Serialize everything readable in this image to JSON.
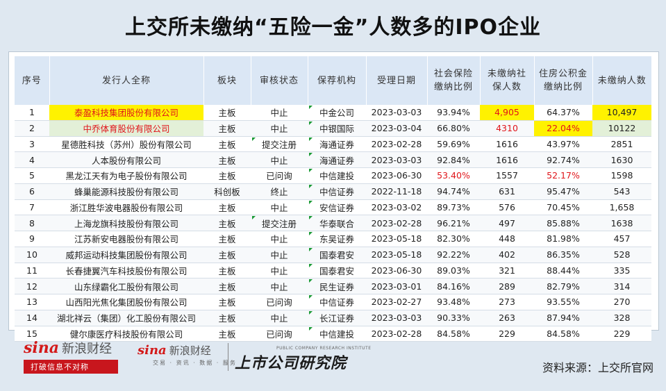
{
  "title": "上交所未缴纳“五险一金”人数多的IPO企业",
  "chart_data": {
    "type": "table",
    "columns": [
      "序号",
      "发行人全称",
      "板块",
      "审核状态",
      "保荐机构",
      "受理日期",
      "社会保险\n缴纳比例",
      "未缴纳社\n保人数",
      "住房公积金\n缴纳比例",
      "未缴纳人数"
    ],
    "rows": [
      [
        "1",
        "泰盈科技集团股份有限公司",
        "主板",
        "中止",
        "中金公司",
        "2023-03-03",
        "93.94%",
        "4,905",
        "64.37%",
        "10,497"
      ],
      [
        "2",
        "中乔体育股份有限公司",
        "主板",
        "中止",
        "中银国际",
        "2023-03-04",
        "66.80%",
        "4310",
        "22.04%",
        "10122"
      ],
      [
        "3",
        "星德胜科技（苏州）股份有限公司",
        "主板",
        "提交注册",
        "海通证券",
        "2023-02-28",
        "59.69%",
        "1616",
        "43.97%",
        "2851"
      ],
      [
        "4",
        "人本股份有限公司",
        "主板",
        "中止",
        "海通证券",
        "2023-03-03",
        "92.84%",
        "1616",
        "92.74%",
        "1630"
      ],
      [
        "5",
        "黑龙江天有为电子股份有限公司",
        "主板",
        "已问询",
        "中信建投",
        "2023-06-30",
        "53.40%",
        "1557",
        "52.17%",
        "1598"
      ],
      [
        "6",
        "蜂巢能源科技股份有限公司",
        "科创板",
        "终止",
        "中信证券",
        "2022-11-18",
        "94.74%",
        "631",
        "95.47%",
        "543"
      ],
      [
        "7",
        "浙江胜华波电器股份有限公司",
        "主板",
        "中止",
        "安信证券",
        "2023-03-02",
        "89.73%",
        "576",
        "70.45%",
        "1,658"
      ],
      [
        "8",
        "上海龙旗科技股份有限公司",
        "主板",
        "提交注册",
        "华泰联合",
        "2023-02-28",
        "96.21%",
        "497",
        "85.88%",
        "1638"
      ],
      [
        "9",
        "江苏新安电器股份有限公司",
        "主板",
        "中止",
        "东吴证券",
        "2023-05-18",
        "82.30%",
        "448",
        "81.98%",
        "457"
      ],
      [
        "10",
        "威邦运动科技集团股份有限公司",
        "主板",
        "中止",
        "国泰君安",
        "2023-05-18",
        "92.22%",
        "402",
        "86.35%",
        "528"
      ],
      [
        "11",
        "长春捷翼汽车科技股份有限公司",
        "主板",
        "中止",
        "国泰君安",
        "2023-06-30",
        "89.03%",
        "321",
        "88.44%",
        "335"
      ],
      [
        "12",
        "山东绿霸化工股份有限公司",
        "主板",
        "中止",
        "民生证券",
        "2023-03-01",
        "84.16%",
        "289",
        "82.79%",
        "314"
      ],
      [
        "13",
        "山西阳光焦化集团股份有限公司",
        "主板",
        "已问询",
        "中信证券",
        "2023-02-27",
        "93.48%",
        "273",
        "93.55%",
        "270"
      ],
      [
        "14",
        "湖北祥云（集团）化工股份有限公司",
        "主板",
        "中止",
        "长江证券",
        "2023-03-03",
        "90.33%",
        "263",
        "87.94%",
        "328"
      ],
      [
        "15",
        "健尔康医疗科技股份有限公司",
        "主板",
        "已问询",
        "中信建投",
        "2023-02-28",
        "84.58%",
        "229",
        "84.58%",
        "229"
      ]
    ],
    "highlights": {
      "yellow_cells": [
        [
          0,
          1
        ],
        [
          0,
          7
        ],
        [
          0,
          9
        ],
        [
          1,
          8
        ]
      ],
      "green_cells": [
        [
          1,
          1
        ],
        [
          1,
          9
        ]
      ],
      "red_text_cells": [
        [
          0,
          1
        ],
        [
          1,
          1
        ],
        [
          0,
          7
        ],
        [
          1,
          7
        ],
        [
          1,
          8
        ],
        [
          4,
          6
        ],
        [
          4,
          8
        ]
      ],
      "flagged_cells": [
        [
          0,
          4
        ],
        [
          1,
          4
        ],
        [
          2,
          4
        ],
        [
          3,
          4
        ],
        [
          4,
          4
        ],
        [
          5,
          4
        ],
        [
          6,
          4
        ],
        [
          7,
          4
        ],
        [
          8,
          4
        ],
        [
          9,
          4
        ],
        [
          10,
          4
        ],
        [
          11,
          4
        ],
        [
          12,
          4
        ],
        [
          13,
          4
        ],
        [
          14,
          4
        ],
        [
          2,
          3
        ],
        [
          7,
          3
        ]
      ]
    },
    "colors": {
      "header_bg": "#dbe7f5",
      "highlight_yellow": "#fff200",
      "highlight_green": "#e3f0d8",
      "red_text": "#e0151a",
      "flag_green": "#1a9a35"
    }
  },
  "footer": {
    "sina_logo_text": "sina",
    "sina_cn": "新浪财经",
    "slogan": "打破信息不对称",
    "sina2_logo_text": "sina",
    "sina2_cn": "新浪财经",
    "sina2_sub": "交易 · 资讯 · 数据 · 服务",
    "institute_en": "PUBLIC COMPANY RESEARCH INSTITUTE",
    "institute_cn": "上市公司研究院",
    "source": "资料来源：上交所官网"
  }
}
